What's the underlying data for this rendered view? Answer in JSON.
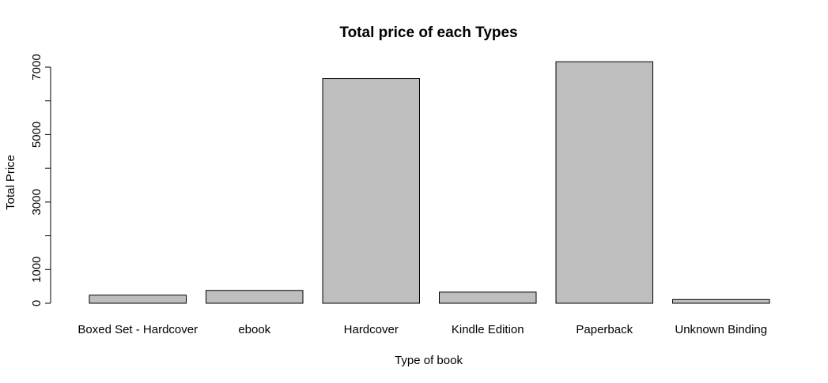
{
  "chart_data": {
    "type": "bar",
    "title": "Total price of each Types",
    "xlabel": "Type of book",
    "ylabel": "Total Price",
    "categories": [
      "Boxed Set - Hardcover",
      "ebook",
      "Hardcover",
      "Kindle Edition",
      "Paperback",
      "Unknown Binding"
    ],
    "values": [
      240,
      380,
      6660,
      330,
      7160,
      110
    ],
    "ylim": [
      0,
      7000
    ],
    "yticks": [
      0,
      1000,
      3000,
      5000,
      7000
    ],
    "ytick_labels": [
      "0",
      "1000",
      "3000",
      "5000",
      "7000"
    ],
    "bar_color": "#bebebe",
    "grid": false
  }
}
